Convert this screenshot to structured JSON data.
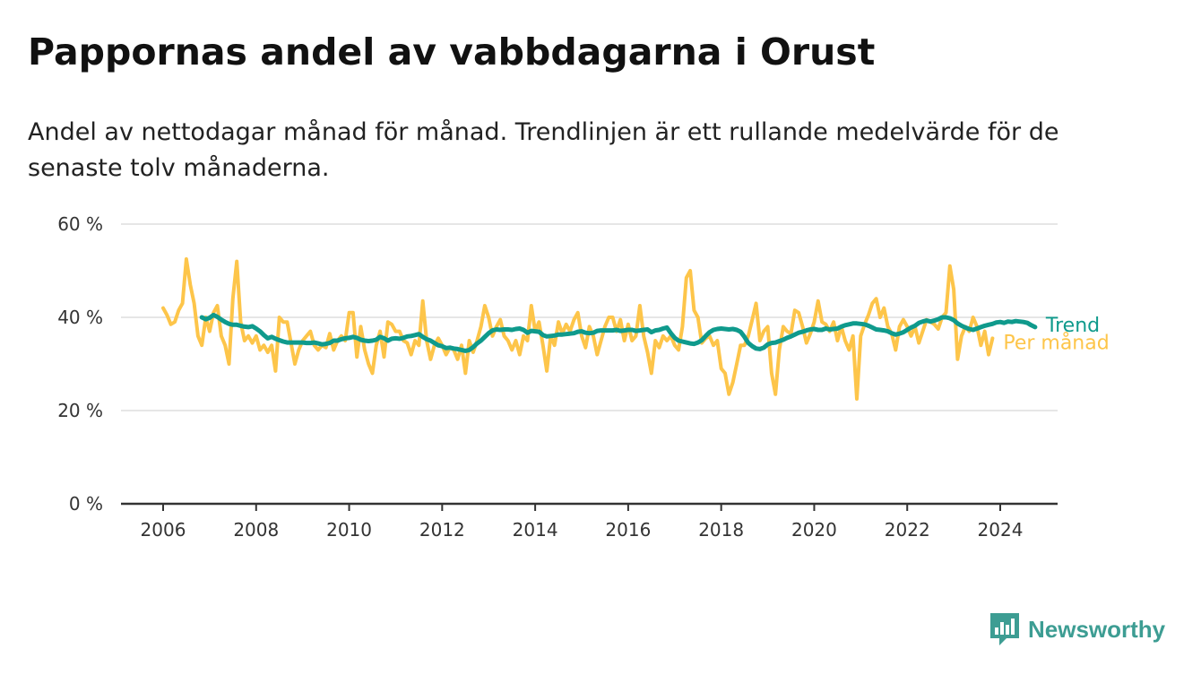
{
  "header": {
    "title": "Pappornas andel av vabbdagarna i Orust",
    "subtitle": "Andel av nettodagar månad för månad. Trendlinjen är ett rullande medelvärde för de senaste tolv månaderna."
  },
  "brand": {
    "name": "Newsworthy",
    "color": "#3d9d93",
    "icon": "newsworthy-logo-icon"
  },
  "colors": {
    "monthly": "#fdc54a",
    "trend": "#0f9a8c",
    "grid": "#dddddd",
    "axis": "#333333"
  },
  "chart_data": {
    "type": "line",
    "xlabel": "",
    "ylabel": "",
    "x_start": "2006-01",
    "x_step": "month",
    "xlim": [
      2005.6,
      2025.1
    ],
    "ylim": [
      0,
      60
    ],
    "y_ticks": [
      0,
      20,
      40,
      60
    ],
    "y_tick_labels": [
      "0 %",
      "20 %",
      "40 %",
      "60 %"
    ],
    "x_ticks": [
      2006,
      2008,
      2010,
      2012,
      2014,
      2016,
      2018,
      2020,
      2022,
      2024
    ],
    "x_tick_labels": [
      "2006",
      "2008",
      "2010",
      "2012",
      "2014",
      "2016",
      "2018",
      "2020",
      "2022",
      "2024"
    ],
    "grid": true,
    "legend": "inline labels at line ends",
    "series": [
      {
        "name": "Per månad",
        "values": [
          42.0,
          40.5,
          38.5,
          39.0,
          41.5,
          43.0,
          52.5,
          47.0,
          43.0,
          36.0,
          34.0,
          40.0,
          37.0,
          41.0,
          42.5,
          36.0,
          34.0,
          30.0,
          44.0,
          52.0,
          39.0,
          35.0,
          36.0,
          34.5,
          36.0,
          33.0,
          34.0,
          32.5,
          34.0,
          28.5,
          40.0,
          39.0,
          39.0,
          34.5,
          30.0,
          33.0,
          35.0,
          36.0,
          37.0,
          34.0,
          33.0,
          34.0,
          33.5,
          36.5,
          33.0,
          35.0,
          36.0,
          35.0,
          41.0,
          41.0,
          31.5,
          38.0,
          33.0,
          30.0,
          28.0,
          34.0,
          37.0,
          31.5,
          39.0,
          38.5,
          37.0,
          37.0,
          35.0,
          34.5,
          32.0,
          35.0,
          34.0,
          43.5,
          35.0,
          31.0,
          34.0,
          35.5,
          34.0,
          32.0,
          33.5,
          33.0,
          31.0,
          34.0,
          28.0,
          35.0,
          32.5,
          35.0,
          38.0,
          42.5,
          40.0,
          36.0,
          38.0,
          39.5,
          36.0,
          35.0,
          33.0,
          35.0,
          32.0,
          36.0,
          35.0,
          42.5,
          37.0,
          39.0,
          34.0,
          28.5,
          36.0,
          34.0,
          39.0,
          36.5,
          38.5,
          37.0,
          39.5,
          41.0,
          36.0,
          33.5,
          38.0,
          36.0,
          32.0,
          35.0,
          38.0,
          40.0,
          40.0,
          37.0,
          39.5,
          35.0,
          38.5,
          35.0,
          36.0,
          42.5,
          36.0,
          32.5,
          28.0,
          35.0,
          33.5,
          36.0,
          35.0,
          36.0,
          34.0,
          33.0,
          38.0,
          48.5,
          50.0,
          41.5,
          40.0,
          34.5,
          35.5,
          36.0,
          34.0,
          35.0,
          29.0,
          28.0,
          23.5,
          26.0,
          30.0,
          34.0,
          34.0,
          36.0,
          39.5,
          43.0,
          35.0,
          37.0,
          38.0,
          28.0,
          23.5,
          33.0,
          38.0,
          37.0,
          36.5,
          41.5,
          41.0,
          38.0,
          34.5,
          36.5,
          39.0,
          43.5,
          39.0,
          38.5,
          37.0,
          39.0,
          35.0,
          38.0,
          35.0,
          33.0,
          36.0,
          22.5,
          36.0,
          38.5,
          40.5,
          43.0,
          44.0,
          40.0,
          42.0,
          38.0,
          36.5,
          33.0,
          38.0,
          39.5,
          38.0,
          36.0,
          38.0,
          34.5,
          37.0,
          39.5,
          39.0,
          38.5,
          37.5,
          40.0,
          41.0,
          51.0,
          46.0,
          31.0,
          36.0,
          38.0,
          37.0,
          40.0,
          38.0,
          34.0,
          37.0,
          32.0,
          35.5
        ]
      },
      {
        "name": "Trend",
        "values": [
          40.0,
          39.6,
          39.9,
          40.5,
          40.1,
          39.5,
          39.0,
          38.6,
          38.4,
          38.4,
          38.2,
          38.0,
          37.9,
          38.1,
          37.6,
          37.0,
          36.2,
          35.5,
          35.8,
          35.4,
          35.1,
          34.8,
          34.6,
          34.6,
          34.6,
          34.6,
          34.6,
          34.5,
          34.5,
          34.6,
          34.4,
          34.2,
          34.3,
          34.5,
          35.0,
          35.0,
          35.3,
          35.5,
          35.6,
          35.8,
          35.6,
          35.2,
          35.0,
          34.9,
          35.0,
          35.2,
          35.8,
          35.5,
          35.0,
          35.4,
          35.5,
          35.4,
          35.6,
          35.9,
          36.0,
          36.2,
          36.4,
          35.8,
          35.3,
          35.0,
          34.5,
          34.0,
          33.8,
          33.4,
          33.5,
          33.3,
          33.2,
          33.0,
          32.8,
          33.0,
          33.6,
          34.4,
          35.0,
          35.8,
          36.6,
          37.2,
          37.4,
          37.3,
          37.4,
          37.4,
          37.3,
          37.5,
          37.6,
          37.3,
          36.7,
          37.1,
          37.0,
          36.9,
          36.2,
          35.9,
          36.0,
          36.1,
          36.3,
          36.3,
          36.4,
          36.5,
          36.6,
          36.9,
          37.0,
          36.7,
          36.6,
          36.7,
          37.1,
          37.2,
          37.2,
          37.2,
          37.2,
          37.3,
          37.1,
          37.2,
          37.3,
          37.3,
          37.1,
          37.2,
          37.3,
          37.4,
          36.8,
          37.2,
          37.3,
          37.6,
          37.8,
          36.6,
          35.6,
          35.0,
          34.8,
          34.6,
          34.4,
          34.3,
          34.6,
          35.1,
          36.0,
          36.8,
          37.3,
          37.5,
          37.6,
          37.5,
          37.4,
          37.5,
          37.3,
          36.9,
          35.8,
          34.5,
          33.8,
          33.3,
          33.2,
          33.5,
          34.2,
          34.5,
          34.6,
          34.9,
          35.2,
          35.6,
          35.9,
          36.3,
          36.7,
          36.9,
          37.2,
          37.4,
          37.5,
          37.3,
          37.3,
          37.6,
          37.4,
          37.5,
          37.6,
          38.0,
          38.3,
          38.5,
          38.7,
          38.7,
          38.6,
          38.5,
          38.2,
          37.8,
          37.4,
          37.3,
          37.2,
          37.0,
          36.6,
          36.3,
          36.5,
          36.8,
          37.3,
          37.8,
          38.2,
          38.8,
          39.1,
          39.3,
          39.1,
          39.3,
          39.6,
          40.0,
          40.0,
          39.8,
          39.4,
          38.7,
          38.2,
          37.8,
          37.5,
          37.3,
          37.6,
          37.9,
          38.2,
          38.4,
          38.6,
          38.9,
          39.0,
          38.8,
          39.1,
          39.0,
          39.2,
          39.1,
          39.0,
          38.8,
          38.3,
          37.9
        ]
      }
    ],
    "trend_start": "2006-11"
  }
}
